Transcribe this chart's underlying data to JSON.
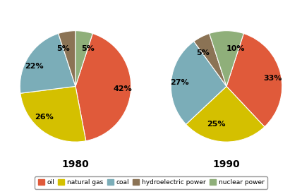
{
  "chart1": {
    "title": "1980",
    "values": [
      42,
      26,
      22,
      5,
      5
    ],
    "labels": [
      "42%",
      "26%",
      "22%",
      "5%",
      "5%"
    ],
    "startangle": 72
  },
  "chart2": {
    "title": "1990",
    "values": [
      33,
      25,
      27,
      5,
      10
    ],
    "labels": [
      "33%",
      "25%",
      "27%",
      "5%",
      "10%"
    ],
    "startangle": 72
  },
  "colors": [
    "#E05A3A",
    "#D4C000",
    "#7BADB8",
    "#8B7355",
    "#8FAF7A"
  ],
  "legend_labels": [
    "oil",
    "natural gas",
    "coal",
    "hydroelectric power",
    "nuclear power"
  ],
  "background_color": "#FFFFFF",
  "title_fontsize": 10,
  "label_fontsize": 8
}
